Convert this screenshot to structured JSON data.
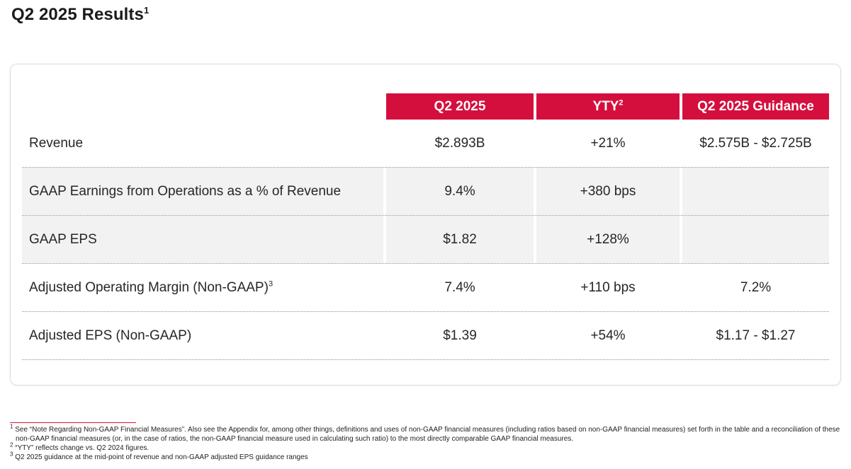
{
  "page": {
    "title": "Q2 2025 Results",
    "title_superscript": "1"
  },
  "table": {
    "header": {
      "col1": "Q2 2025",
      "col2": "YTY",
      "col2_superscript": "2",
      "col3": "Q2 2025 Guidance"
    },
    "rows": [
      {
        "label": "Revenue",
        "label_superscript": "",
        "q2_2025": "$2.893B",
        "yty": "+21%",
        "guidance": "$2.575B - $2.725B"
      },
      {
        "label": "GAAP Earnings from Operations as a % of Revenue",
        "label_superscript": "",
        "q2_2025": "9.4%",
        "yty": "+380 bps",
        "guidance": ""
      },
      {
        "label": "GAAP EPS",
        "label_superscript": "",
        "q2_2025": "$1.82",
        "yty": "+128%",
        "guidance": ""
      },
      {
        "label": "Adjusted Operating Margin (Non-GAAP)",
        "label_superscript": "3",
        "q2_2025": "7.4%",
        "yty": "+110 bps",
        "guidance": "7.2%"
      },
      {
        "label": "Adjusted EPS (Non-GAAP)",
        "label_superscript": "",
        "q2_2025": "$1.39",
        "yty": "+54%",
        "guidance": "$1.17 - $1.27"
      }
    ]
  },
  "footnotes": [
    {
      "marker": "1",
      "text": "See “Note Regarding Non-GAAP Financial Measures”. Also see the Appendix for, among other things, definitions and uses of non-GAAP financial measures (including ratios based on non-GAAP financial measures) set forth in the table and a reconciliation of these non-GAAP financial measures (or, in the case of ratios, the non-GAAP financial measure used in calculating such ratio) to the most directly comparable GAAP financial measures."
    },
    {
      "marker": "2",
      "text": "“YTY” reflects change vs. Q2 2024 figures."
    },
    {
      "marker": "3",
      "text": "Q2 2025 guidance at the mid-point of revenue and non-GAAP adjusted EPS guidance ranges"
    }
  ],
  "colors": {
    "header_background": "#D50F3D",
    "shaded_row_background": "#F2F2F2",
    "footnote_rule": "#E8112D"
  }
}
